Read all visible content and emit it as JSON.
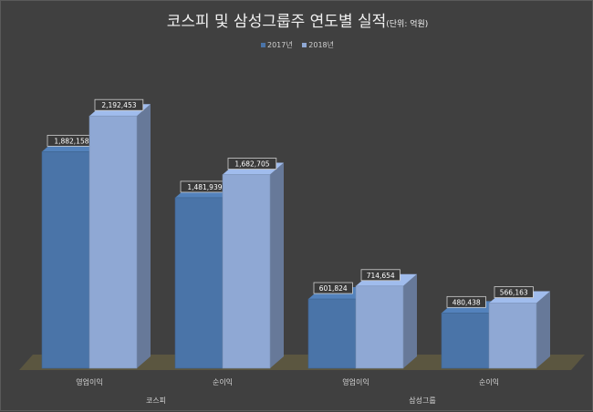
{
  "chart_data": {
    "type": "bar",
    "title": "코스피 및 삼성그룹주 연도별 실적",
    "title_unit": "(단위: 억원)",
    "categories": [
      "영업이익",
      "순이익",
      "영업이익",
      "순이익"
    ],
    "groups": [
      {
        "label": "코스피",
        "categories": [
          0,
          1
        ]
      },
      {
        "label": "삼성그룹",
        "categories": [
          2,
          3
        ]
      }
    ],
    "series": [
      {
        "name": "2017년",
        "values": [
          1882158,
          1481939,
          601824,
          480438
        ],
        "labels": [
          "1,882,158",
          "1,481,939",
          "601,824",
          "480,438"
        ],
        "color": "#4a74a8"
      },
      {
        "name": "2018년",
        "values": [
          2192453,
          1682705,
          714654,
          566163
        ],
        "labels": [
          "2,192,453",
          "1,682,705",
          "714,654",
          "566,163"
        ],
        "color": "#8fa8d4"
      }
    ],
    "ylim": [
      0,
      2400000
    ],
    "legend": "top",
    "grid": false,
    "style": "3d-bar"
  }
}
